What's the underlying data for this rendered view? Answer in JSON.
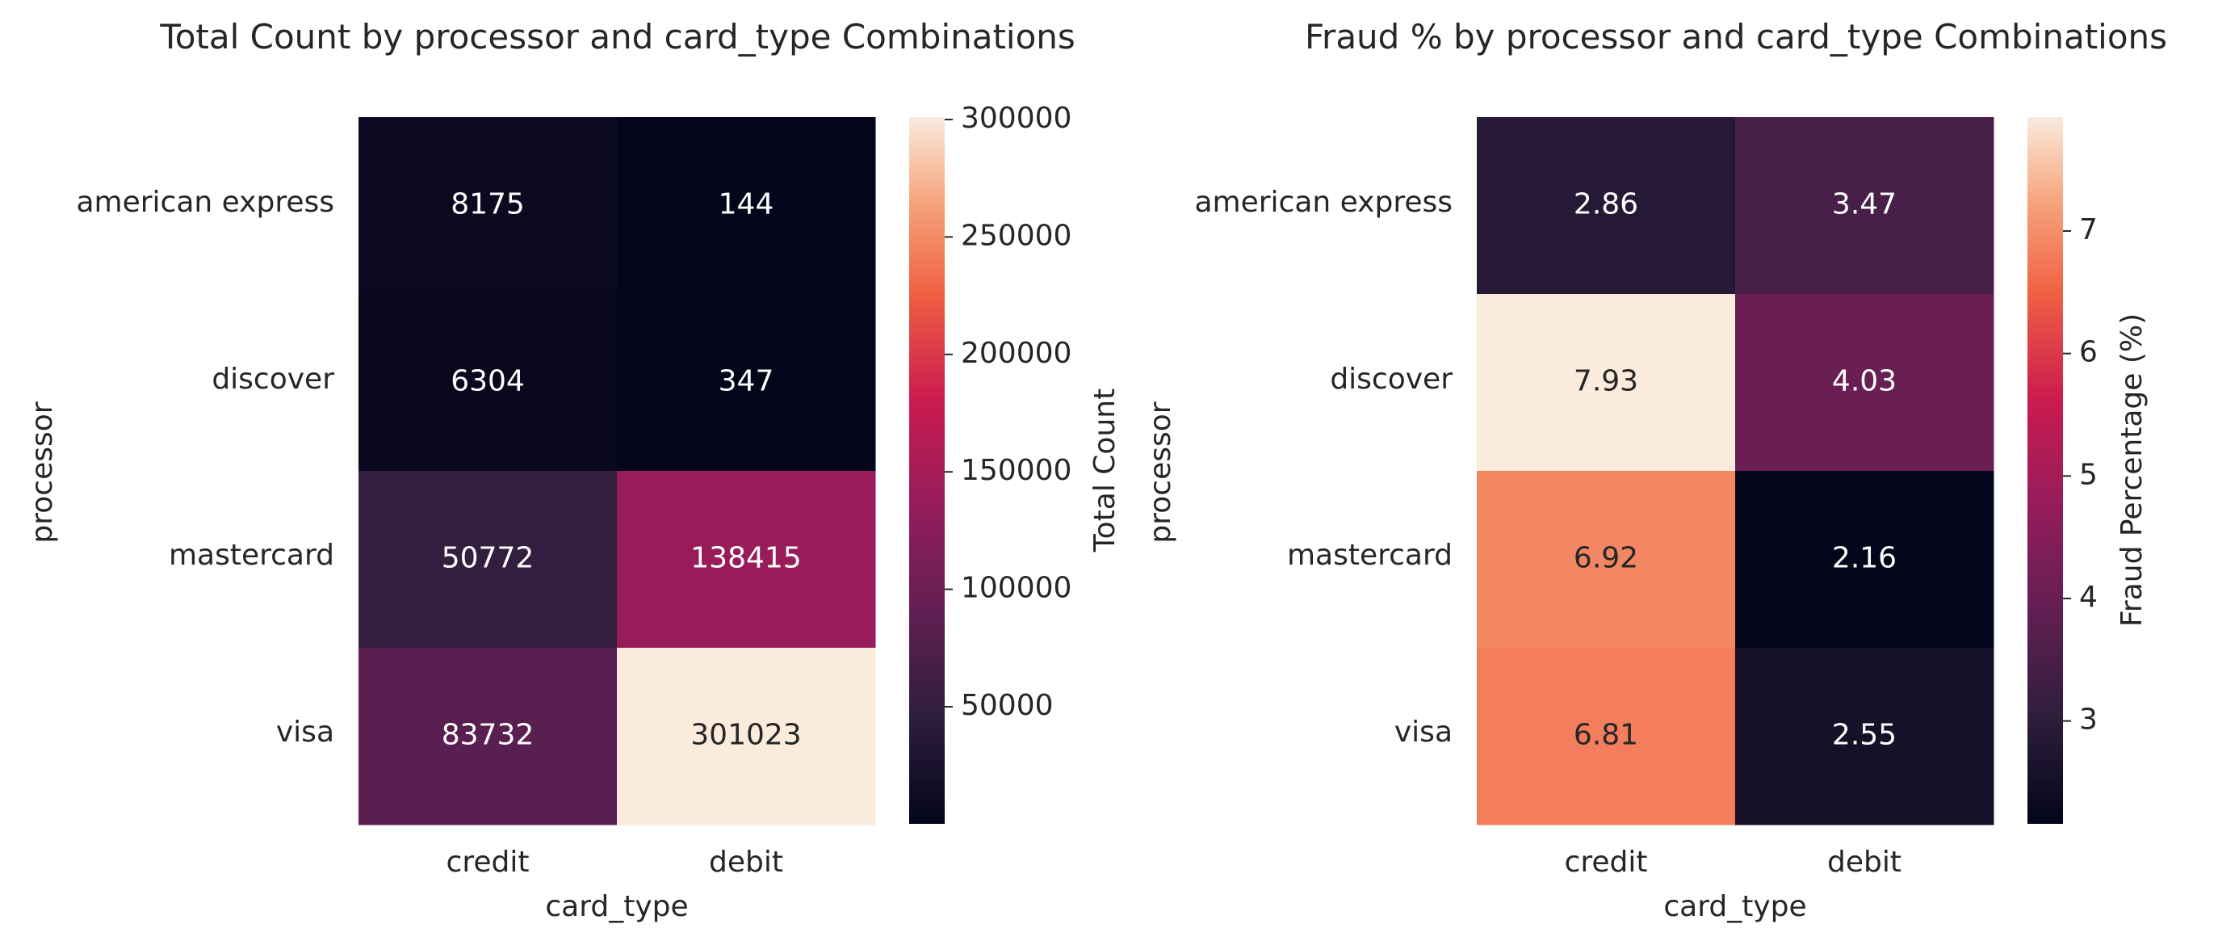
{
  "chart_data": [
    {
      "type": "heatmap",
      "title": "Total Count by processor and card_type Combinations",
      "xlabel": "card_type",
      "ylabel": "processor",
      "x_categories": [
        "credit",
        "debit"
      ],
      "y_categories": [
        "american express",
        "discover",
        "mastercard",
        "visa"
      ],
      "values": [
        [
          8175,
          144
        ],
        [
          6304,
          347
        ],
        [
          50772,
          138415
        ],
        [
          83732,
          301023
        ]
      ],
      "value_format": "integer",
      "colormap": "rocket",
      "colorbar": {
        "label": "Total Count",
        "range": [
          144,
          301023
        ],
        "ticks": [
          50000,
          100000,
          150000,
          200000,
          250000,
          300000
        ],
        "tick_labels": [
          "50000",
          "100000",
          "150000",
          "200000",
          "250000",
          "300000"
        ]
      }
    },
    {
      "type": "heatmap",
      "title": "Fraud % by processor and card_type Combinations",
      "xlabel": "card_type",
      "ylabel": "processor",
      "x_categories": [
        "credit",
        "debit"
      ],
      "y_categories": [
        "american express",
        "discover",
        "mastercard",
        "visa"
      ],
      "values": [
        [
          2.86,
          3.47
        ],
        [
          7.93,
          4.03
        ],
        [
          6.92,
          2.16
        ],
        [
          6.81,
          2.55
        ]
      ],
      "value_format": "2dp",
      "colormap": "rocket",
      "colorbar": {
        "label": "Fraud Percentage (%)",
        "range": [
          2.16,
          7.93
        ],
        "ticks": [
          3,
          4,
          5,
          6,
          7
        ],
        "tick_labels": [
          "3",
          "4",
          "5",
          "6",
          "7"
        ]
      }
    }
  ]
}
